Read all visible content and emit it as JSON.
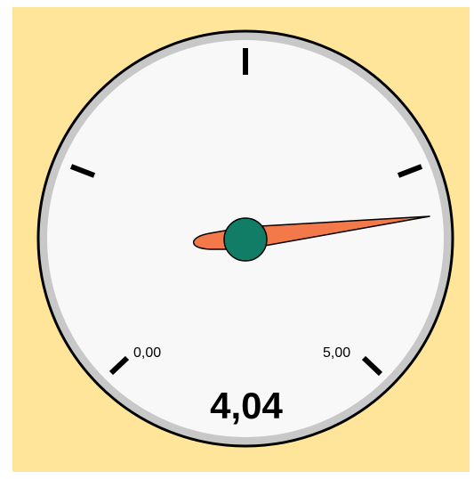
{
  "gauge": {
    "min_label": "0,00",
    "max_label": "5,00",
    "value_label": "4,04",
    "min": 0,
    "max": 5,
    "value": 4.04,
    "colors": {
      "panel_background": "#ffe599",
      "dial_face": "#f8f8f8",
      "bezel": "#c8c8c8",
      "needle": "#f4794a",
      "hub": "#127d67",
      "ticks": "#000000"
    }
  }
}
